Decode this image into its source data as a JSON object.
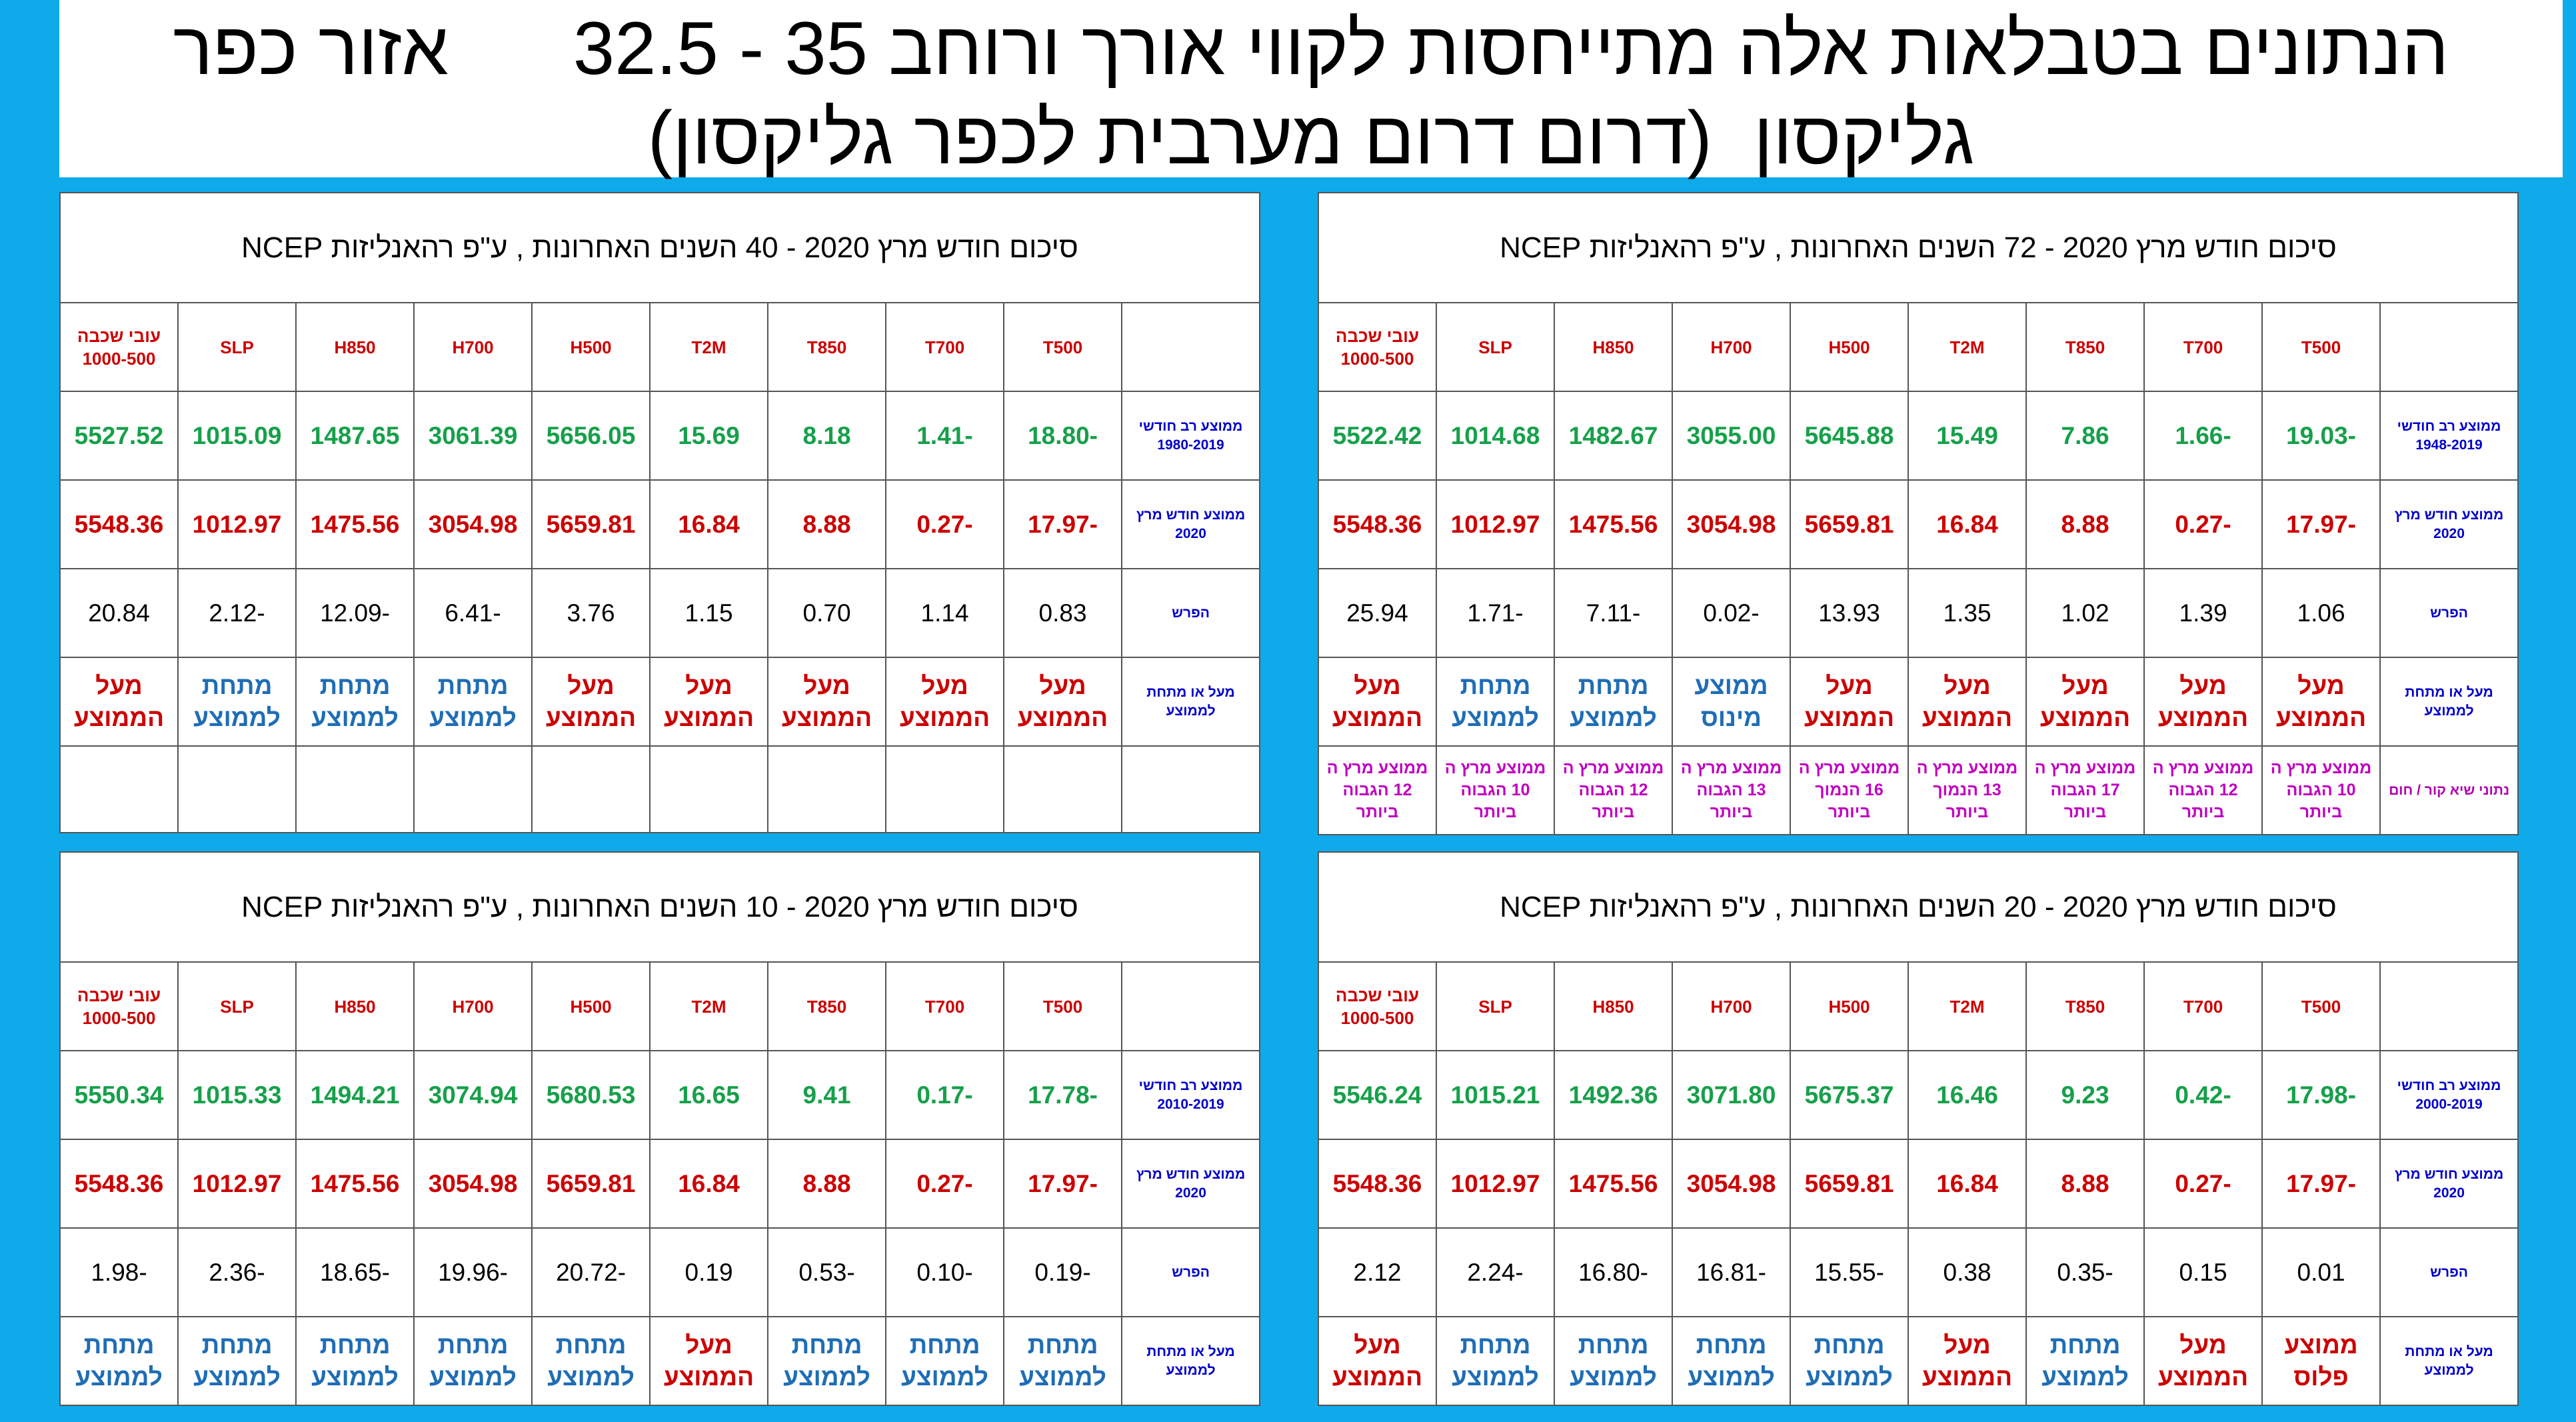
{
  "header": {
    "title_lines": [
      "הנתונים בטבלאות אלה מתייחסות לקווי אורך ורוחב 35 - 32.5      אזור כפר",
      "גליקסון  (דרום דרום מערבית לכפר גליקסון)"
    ]
  },
  "tables": [
    {
      "title": "סיכום חודש מרץ 2020  -  72 השנים האחרונות  , ע\"פ רהאנליזות NCEP",
      "columns": [
        "T500",
        "T700",
        "T850",
        "T2M",
        "H500",
        "H700",
        "H850",
        "SLP",
        "עובי שכבה 1000-500"
      ],
      "rows": [
        {
          "label": "ממוצע רב חודשי 1948-2019",
          "values": [
            "-19.03",
            "-1.66",
            "7.86",
            "15.49",
            "5645.88",
            "3055.00",
            "1482.67",
            "1014.68",
            "5522.42"
          ]
        },
        {
          "label": "ממוצע חודש מרץ 2020",
          "values": [
            "-17.97",
            "-0.27",
            "8.88",
            "16.84",
            "5659.81",
            "3054.98",
            "1475.56",
            "1012.97",
            "5548.36"
          ]
        },
        {
          "label": "הפרש",
          "values": [
            "1.06",
            "1.39",
            "1.02",
            "1.35",
            "13.93",
            "-0.02",
            "-7.11",
            "-1.71",
            "25.94"
          ]
        },
        {
          "label": "מעל או מתחת לממוצע",
          "values": [
            "מעל הממוצע",
            "מעל הממוצע",
            "מעל הממוצע",
            "מעל הממוצע",
            "מעל הממוצע",
            "ממוצע מינוס",
            "מתחת לממוצע",
            "מתחת לממוצע",
            "מעל הממוצע"
          ]
        },
        {
          "label": "נתוני שיא  קור / חום",
          "values": [
            "ממוצע מרץ ה 10 הגבוה ביותר",
            "ממוצע מרץ ה 12 הגבוה ביותר",
            "ממוצע מרץ ה 17 הגבוה ביותר",
            "ממוצע מרץ ה 13 הנמוך ביותר",
            "ממוצע מרץ ה 16 הנמוך ביותר",
            "ממוצע מרץ ה 13 הגבוה ביותר",
            "ממוצע מרץ ה 12 הגבוה ביותר",
            "ממוצע מרץ ה 10 הגבוה ביותר",
            "ממוצע מרץ ה 12 הגבוה ביותר"
          ]
        }
      ]
    },
    {
      "title": "סיכום חודש מרץ 2020  -  40 השנים האחרונות  , ע\"פ רהאנליזות NCEP",
      "columns": [
        "T500",
        "T700",
        "T850",
        "T2M",
        "H500",
        "H700",
        "H850",
        "SLP",
        "עובי שכבה 1000-500"
      ],
      "rows": [
        {
          "label": "ממוצע רב חודשי 1980-2019",
          "values": [
            "-18.80",
            "-1.41",
            "8.18",
            "15.69",
            "5656.05",
            "3061.39",
            "1487.65",
            "1015.09",
            "5527.52"
          ]
        },
        {
          "label": "ממוצע חודש מרץ 2020",
          "values": [
            "-17.97",
            "-0.27",
            "8.88",
            "16.84",
            "5659.81",
            "3054.98",
            "1475.56",
            "1012.97",
            "5548.36"
          ]
        },
        {
          "label": "הפרש",
          "values": [
            "0.83",
            "1.14",
            "0.70",
            "1.15",
            "3.76",
            "-6.41",
            "-12.09",
            "-2.12",
            "20.84"
          ]
        },
        {
          "label": "מעל או מתחת לממוצע",
          "values": [
            "מעל הממוצע",
            "מעל הממוצע",
            "מעל הממוצע",
            "מעל הממוצע",
            "מעל הממוצע",
            "מתחת לממוצע",
            "מתחת לממוצע",
            "מתחת לממוצע",
            "מעל הממוצע"
          ]
        }
      ],
      "empty_row": true
    },
    {
      "title": "סיכום חודש מרץ 2020  -  20 השנים האחרונות  , ע\"פ רהאנליזות NCEP",
      "columns": [
        "T500",
        "T700",
        "T850",
        "T2M",
        "H500",
        "H700",
        "H850",
        "SLP",
        "עובי שכבה 1000-500"
      ],
      "rows": [
        {
          "label": "ממוצע רב חודשי 2000-2019",
          "values": [
            "-17.98",
            "-0.42",
            "9.23",
            "16.46",
            "5675.37",
            "3071.80",
            "1492.36",
            "1015.21",
            "5546.24"
          ]
        },
        {
          "label": "ממוצע חודש מרץ 2020",
          "values": [
            "-17.97",
            "-0.27",
            "8.88",
            "16.84",
            "5659.81",
            "3054.98",
            "1475.56",
            "1012.97",
            "5548.36"
          ]
        },
        {
          "label": "הפרש",
          "values": [
            "0.01",
            "0.15",
            "-0.35",
            "0.38",
            "-15.55",
            "-16.81",
            "-16.80",
            "-2.24",
            "2.12"
          ]
        },
        {
          "label": "מעל או מתחת לממוצע",
          "values": [
            "ממוצע פלוס",
            "מעל הממוצע",
            "מתחת לממוצע",
            "מעל הממוצע",
            "מתחת לממוצע",
            "מתחת לממוצע",
            "מתחת לממוצע",
            "מתחת לממוצע",
            "מעל הממוצע"
          ]
        }
      ]
    },
    {
      "title": "סיכום חודש מרץ 2020  -  10 השנים האחרונות  , ע\"פ רהאנליזות NCEP",
      "columns": [
        "T500",
        "T700",
        "T850",
        "T2M",
        "H500",
        "H700",
        "H850",
        "SLP",
        "עובי שכבה 1000-500"
      ],
      "rows": [
        {
          "label": "ממוצע רב חודשי 2010-2019",
          "values": [
            "-17.78",
            "-0.17",
            "9.41",
            "16.65",
            "5680.53",
            "3074.94",
            "1494.21",
            "1015.33",
            "5550.34"
          ]
        },
        {
          "label": "ממוצע חודש מרץ 2020",
          "values": [
            "-17.97",
            "-0.27",
            "8.88",
            "16.84",
            "5659.81",
            "3054.98",
            "1475.56",
            "1012.97",
            "5548.36"
          ]
        },
        {
          "label": "הפרש",
          "values": [
            "-0.19",
            "-0.10",
            "-0.53",
            "0.19",
            "-20.72",
            "-19.96",
            "-18.65",
            "-2.36",
            "-1.98"
          ]
        },
        {
          "label": "מעל או מתחת לממוצע",
          "values": [
            "מתחת לממוצע",
            "מתחת לממוצע",
            "מתחת לממוצע",
            "מעל הממוצע",
            "מתחת לממוצע",
            "מתחת לממוצע",
            "מתחת לממוצע",
            "מתחת לממוצע",
            "מתחת לממוצע"
          ]
        }
      ]
    }
  ]
}
